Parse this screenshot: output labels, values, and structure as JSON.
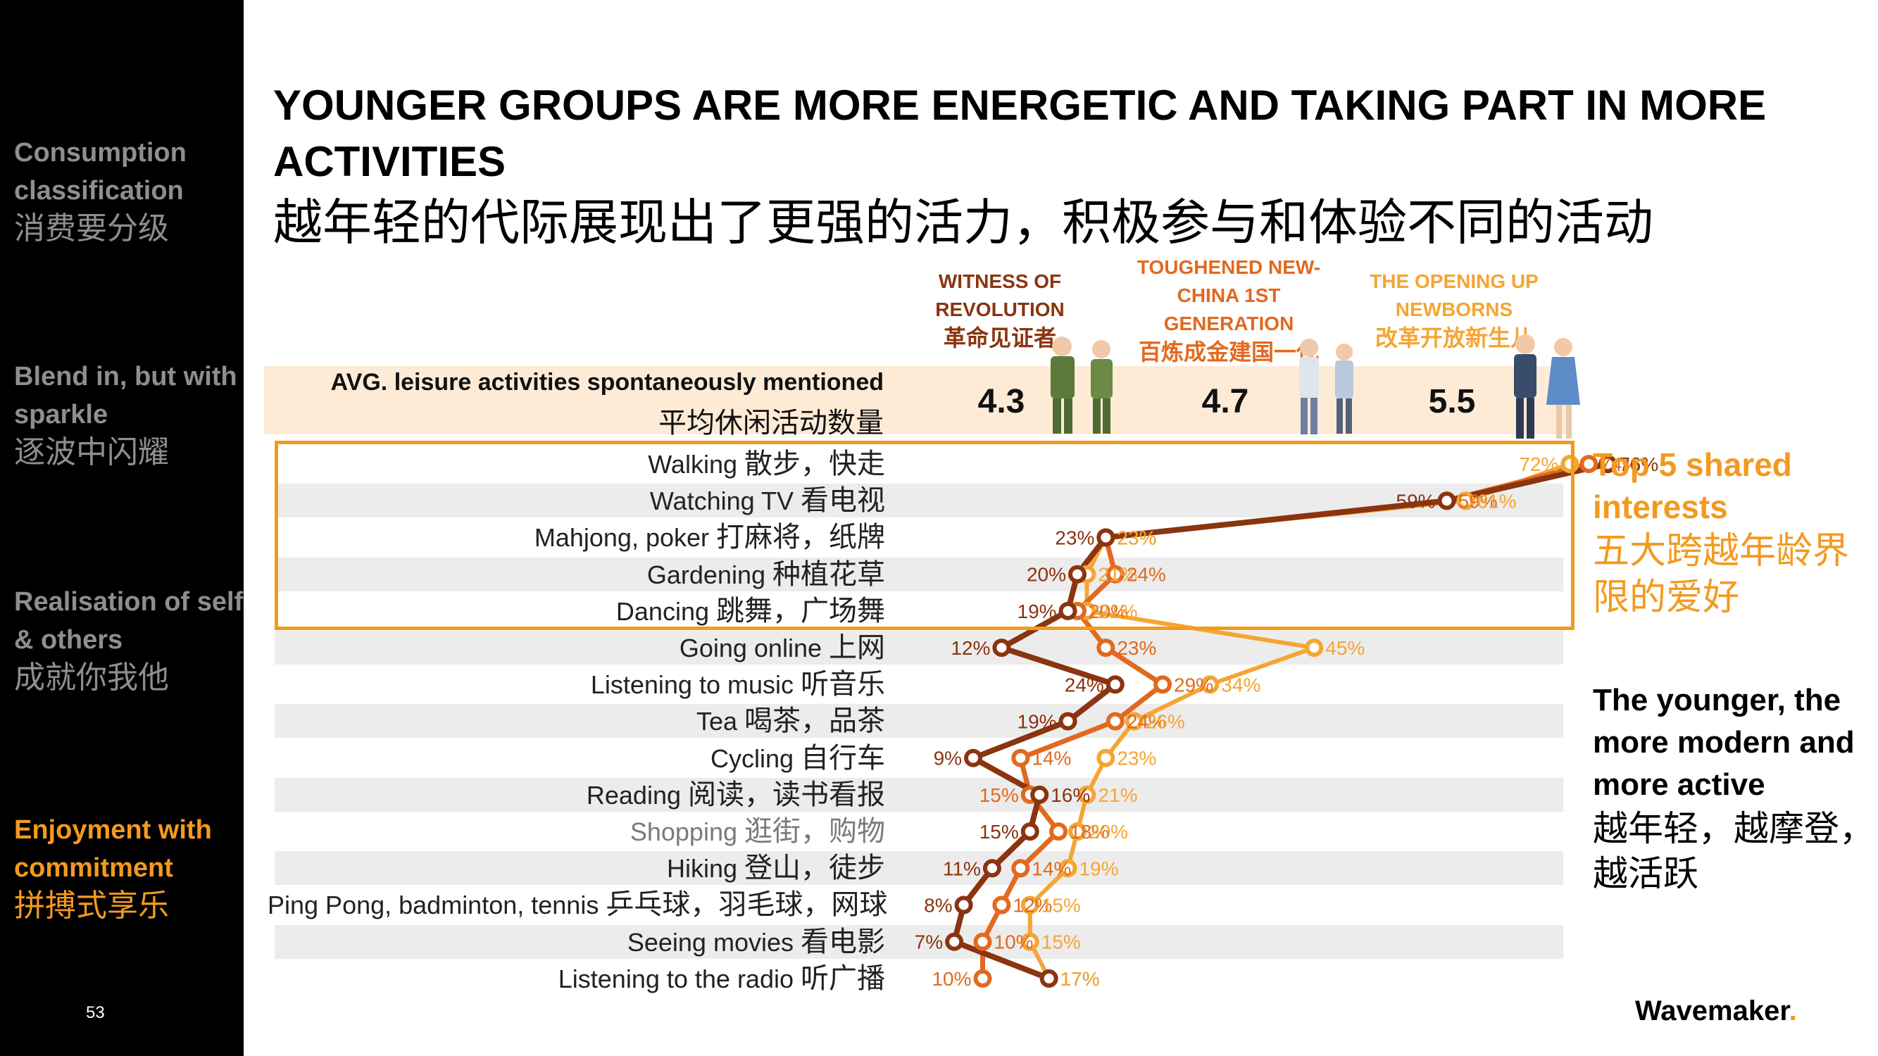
{
  "sidebar": {
    "sections": [
      {
        "en": "Consumption classification",
        "cn": "消费要分级"
      },
      {
        "en": "Blend in, but with sparkle",
        "cn": "逐波中闪耀"
      },
      {
        "en": "Realisation of self & others",
        "cn": "成就你我他"
      },
      {
        "en": "Enjoyment with commitment",
        "cn": "拼搏式享乐"
      }
    ],
    "page_number": "53"
  },
  "title": {
    "en": "YOUNGER GROUPS ARE MORE ENERGETIC AND TAKING PART IN MORE ACTIVITIES",
    "cn": "越年轻的代际展现出了更强的活力，积极参与和体验不同的活动"
  },
  "generations": [
    {
      "en": "WITNESS OF REVOLUTION",
      "cn": "革命见证者",
      "avg": "4.3",
      "color": "#8a3410"
    },
    {
      "en": "TOUGHENED NEW-CHINA 1ST GENERATION",
      "cn": "百炼成金建国一代",
      "avg": "4.7",
      "color": "#e2691f"
    },
    {
      "en": "THE OPENING UP NEWBORNS",
      "cn": "改革开放新生儿",
      "avg": "5.5",
      "color": "#f5a533"
    }
  ],
  "avg_row": {
    "en": "AVG. leisure activities spontaneously mentioned",
    "cn": "平均休闲活动数量"
  },
  "notes": {
    "top5_en": "Top 5 shared interests",
    "top5_cn": "五大跨越年龄界限的爱好",
    "younger_en": "The younger, the more modern and more active",
    "younger_cn": "越年轻，越摩登，越活跃"
  },
  "brand": "Wavemaker",
  "chart_data": {
    "type": "line",
    "orientation": "horizontal",
    "categories": [
      {
        "en": "Walking",
        "cn": "散步，快走"
      },
      {
        "en": "Watching TV",
        "cn": "看电视"
      },
      {
        "en": "Mahjong, poker",
        "cn": "打麻将，纸牌"
      },
      {
        "en": "Gardening",
        "cn": "种植花草"
      },
      {
        "en": "Dancing",
        "cn": "跳舞，广场舞"
      },
      {
        "en": "Going online",
        "cn": "上网"
      },
      {
        "en": "Listening to music",
        "cn": "听音乐"
      },
      {
        "en": "Tea",
        "cn": "喝茶，品茶"
      },
      {
        "en": "Cycling",
        "cn": "自行车"
      },
      {
        "en": "Reading",
        "cn": "阅读，读书看报"
      },
      {
        "en": "Shopping",
        "cn": "逛街，购物"
      },
      {
        "en": "Hiking",
        "cn": "登山，徒步"
      },
      {
        "en": "Ping Pong, badminton, tennis",
        "cn": "乒乓球，羽毛球，网球"
      },
      {
        "en": "Seeing movies",
        "cn": "看电影"
      },
      {
        "en": "Listening to the radio",
        "cn": "听广播"
      }
    ],
    "series": [
      {
        "name": "WITNESS OF REVOLUTION",
        "values": [
          76,
          59,
          23,
          20,
          19,
          12,
          24,
          19,
          9,
          16,
          15,
          11,
          8,
          7,
          17
        ]
      },
      {
        "name": "TOUGHENED NEW-CHINA 1ST GENERATION",
        "values": [
          74,
          59,
          23,
          24,
          20,
          23,
          29,
          24,
          14,
          15,
          18,
          14,
          12,
          10,
          10
        ]
      },
      {
        "name": "THE OPENING UP NEWBORNS",
        "values": [
          72,
          61,
          23,
          21,
          21,
          45,
          34,
          26,
          23,
          21,
          20,
          19,
          15,
          15,
          17
        ]
      }
    ],
    "xlim": [
      0,
      80
    ],
    "unit": "%",
    "highlight": "first 5 rows boxed as Top 5 shared interests"
  }
}
